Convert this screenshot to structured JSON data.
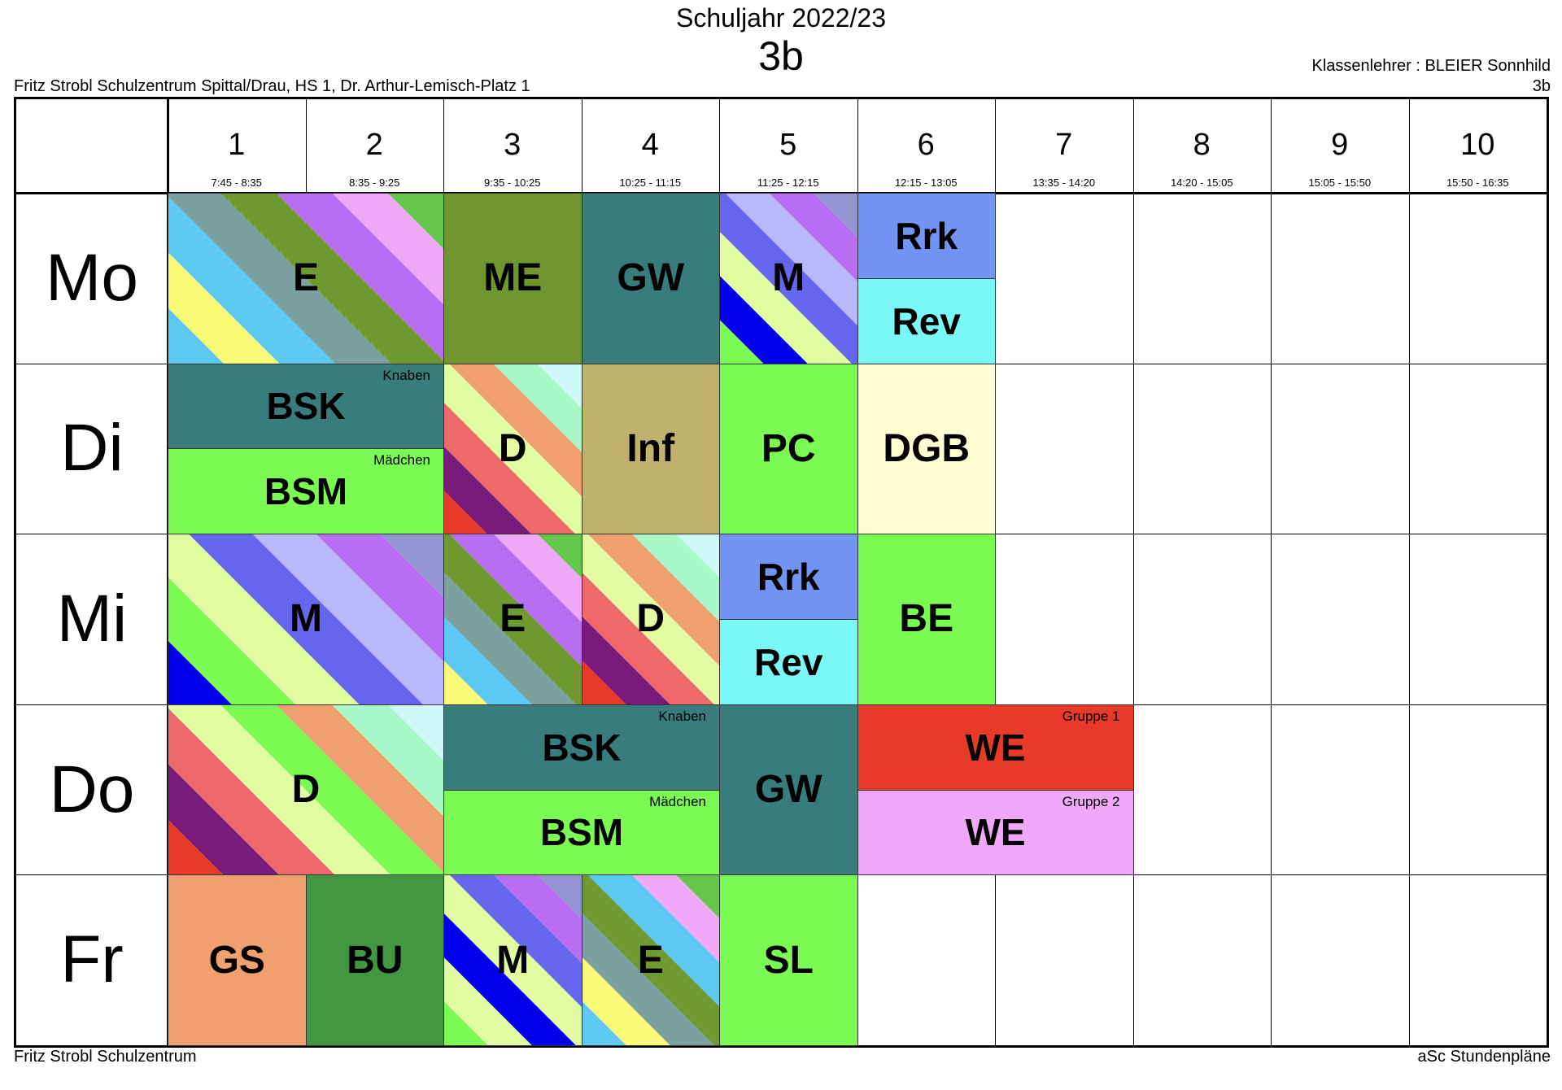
{
  "header": {
    "year": "Schuljahr 2022/23",
    "class_name": "3b",
    "teacher": "Klassenlehrer : BLEIER Sonnhild",
    "class_right": "3b",
    "school_address": "Fritz Strobl Schulzentrum Spittal/Drau, HS 1, Dr. Arthur-Lemisch-Platz 1"
  },
  "footer": {
    "left": "Fritz Strobl Schulzentrum",
    "right": "aSc Stundenpläne"
  },
  "periods": [
    {
      "num": "1",
      "time": "7:45 - 8:35"
    },
    {
      "num": "2",
      "time": "8:35 - 9:25"
    },
    {
      "num": "3",
      "time": "9:35 - 10:25"
    },
    {
      "num": "4",
      "time": "10:25 - 11:15"
    },
    {
      "num": "5",
      "time": "11:25 - 12:15"
    },
    {
      "num": "6",
      "time": "12:15 - 13:05"
    },
    {
      "num": "7",
      "time": "13:35 - 14:20"
    },
    {
      "num": "8",
      "time": "14:20 - 15:05"
    },
    {
      "num": "9",
      "time": "15:05 - 15:50"
    },
    {
      "num": "10",
      "time": "15:50 - 16:35"
    }
  ],
  "days": [
    "Mo",
    "Di",
    "Mi",
    "Do",
    "Fr"
  ],
  "lessons": [
    {
      "day": 0,
      "start": 1,
      "span": 2,
      "part": "full",
      "subject": "E",
      "colors": [
        "#5ec8f5",
        "#fbfb7a",
        "#5ec8f5",
        "#7ca0a0",
        "#6f9a32",
        "#b86ef2",
        "#f0a8f8",
        "#64c64b"
      ]
    },
    {
      "day": 0,
      "start": 3,
      "span": 1,
      "part": "full",
      "subject": "ME",
      "colors": [
        "#72962f"
      ]
    },
    {
      "day": 0,
      "start": 4,
      "span": 1,
      "part": "full",
      "subject": "GW",
      "colors": [
        "#387c7c"
      ]
    },
    {
      "day": 0,
      "start": 5,
      "span": 1,
      "part": "full",
      "subject": "M",
      "colors": [
        "#7afa52",
        "#0000ee",
        "#e2fca2",
        "#6666ee",
        "#b8b8fa",
        "#b86ef2",
        "#9494d2"
      ]
    },
    {
      "day": 0,
      "start": 6,
      "span": 1,
      "part": "top",
      "subject": "Rrk",
      "colors": [
        "#7494f4"
      ]
    },
    {
      "day": 0,
      "start": 6,
      "span": 1,
      "part": "bottom",
      "subject": "Rev",
      "colors": [
        "#7af8f8"
      ]
    },
    {
      "day": 1,
      "start": 1,
      "span": 2,
      "part": "top",
      "subject": "BSK",
      "group": "Knaben",
      "colors": [
        "#387c7c"
      ]
    },
    {
      "day": 1,
      "start": 1,
      "span": 2,
      "part": "bottom",
      "subject": "BSM",
      "group": "Mädchen",
      "colors": [
        "#7afa52"
      ]
    },
    {
      "day": 1,
      "start": 3,
      "span": 1,
      "part": "full",
      "subject": "D",
      "colors": [
        "#e83a28",
        "#7a1a7a",
        "#ee6a6a",
        "#e2fca2",
        "#f0a070",
        "#a8f8c8",
        "#d0f8f8"
      ]
    },
    {
      "day": 1,
      "start": 4,
      "span": 1,
      "part": "full",
      "subject": "Inf",
      "colors": [
        "#beb26e"
      ]
    },
    {
      "day": 1,
      "start": 5,
      "span": 1,
      "part": "full",
      "subject": "PC",
      "colors": [
        "#7afa52"
      ]
    },
    {
      "day": 1,
      "start": 6,
      "span": 1,
      "part": "full",
      "subject": "DGB",
      "colors": [
        "#fefed2"
      ]
    },
    {
      "day": 2,
      "start": 1,
      "span": 2,
      "part": "full",
      "subject": "M",
      "colors": [
        "#0000ee",
        "#7afa52",
        "#e2fca2",
        "#6666ee",
        "#b8b8fa",
        "#b86ef2",
        "#9494d2"
      ]
    },
    {
      "day": 2,
      "start": 3,
      "span": 1,
      "part": "full",
      "subject": "E",
      "colors": [
        "#fbfb7a",
        "#5ec8f5",
        "#7ca0a0",
        "#6f9a32",
        "#b86ef2",
        "#f0a8f8",
        "#64c64b"
      ]
    },
    {
      "day": 2,
      "start": 4,
      "span": 1,
      "part": "full",
      "subject": "D",
      "colors": [
        "#e83a28",
        "#7a1a7a",
        "#ee6a6a",
        "#e2fca2",
        "#f0a070",
        "#a8f8c8",
        "#d0f8f8"
      ]
    },
    {
      "day": 2,
      "start": 5,
      "span": 1,
      "part": "top",
      "subject": "Rrk",
      "colors": [
        "#7494f4"
      ]
    },
    {
      "day": 2,
      "start": 5,
      "span": 1,
      "part": "bottom",
      "subject": "Rev",
      "colors": [
        "#7af8f8"
      ]
    },
    {
      "day": 2,
      "start": 6,
      "span": 1,
      "part": "full",
      "subject": "BE",
      "colors": [
        "#7afa52"
      ]
    },
    {
      "day": 3,
      "start": 1,
      "span": 2,
      "part": "full",
      "subject": "D",
      "colors": [
        "#e83a28",
        "#7a1a7a",
        "#ee6a6a",
        "#e2fca2",
        "#7afa52",
        "#f0a070",
        "#a8f8c8",
        "#d0f8f8"
      ]
    },
    {
      "day": 3,
      "start": 3,
      "span": 2,
      "part": "top",
      "subject": "BSK",
      "group": "Knaben",
      "colors": [
        "#387c7c"
      ]
    },
    {
      "day": 3,
      "start": 3,
      "span": 2,
      "part": "bottom",
      "subject": "BSM",
      "group": "Mädchen",
      "colors": [
        "#7afa52"
      ]
    },
    {
      "day": 3,
      "start": 5,
      "span": 1,
      "part": "full",
      "subject": "GW",
      "colors": [
        "#387c7c"
      ]
    },
    {
      "day": 3,
      "start": 6,
      "span": 2,
      "part": "top",
      "subject": "WE",
      "group": "Gruppe 1",
      "colors": [
        "#e83a28"
      ]
    },
    {
      "day": 3,
      "start": 6,
      "span": 2,
      "part": "bottom",
      "subject": "WE",
      "group": "Gruppe 2",
      "colors": [
        "#f0a8f8"
      ]
    },
    {
      "day": 4,
      "start": 1,
      "span": 1,
      "part": "full",
      "subject": "GS",
      "colors": [
        "#f0a070"
      ]
    },
    {
      "day": 4,
      "start": 2,
      "span": 1,
      "part": "full",
      "subject": "BU",
      "colors": [
        "#429642"
      ]
    },
    {
      "day": 4,
      "start": 3,
      "span": 1,
      "part": "full",
      "subject": "M",
      "colors": [
        "#7afa52",
        "#e2fca2",
        "#0000ee",
        "#e2fca2",
        "#6666ee",
        "#b86ef2",
        "#9494d2"
      ]
    },
    {
      "day": 4,
      "start": 4,
      "span": 1,
      "part": "full",
      "subject": "E",
      "colors": [
        "#5ec8f5",
        "#fbfb7a",
        "#7ca0a0",
        "#6f9a32",
        "#5ec8f5",
        "#f0a8f8",
        "#64c64b"
      ]
    },
    {
      "day": 4,
      "start": 5,
      "span": 1,
      "part": "full",
      "subject": "SL",
      "colors": [
        "#7afa52"
      ]
    }
  ]
}
